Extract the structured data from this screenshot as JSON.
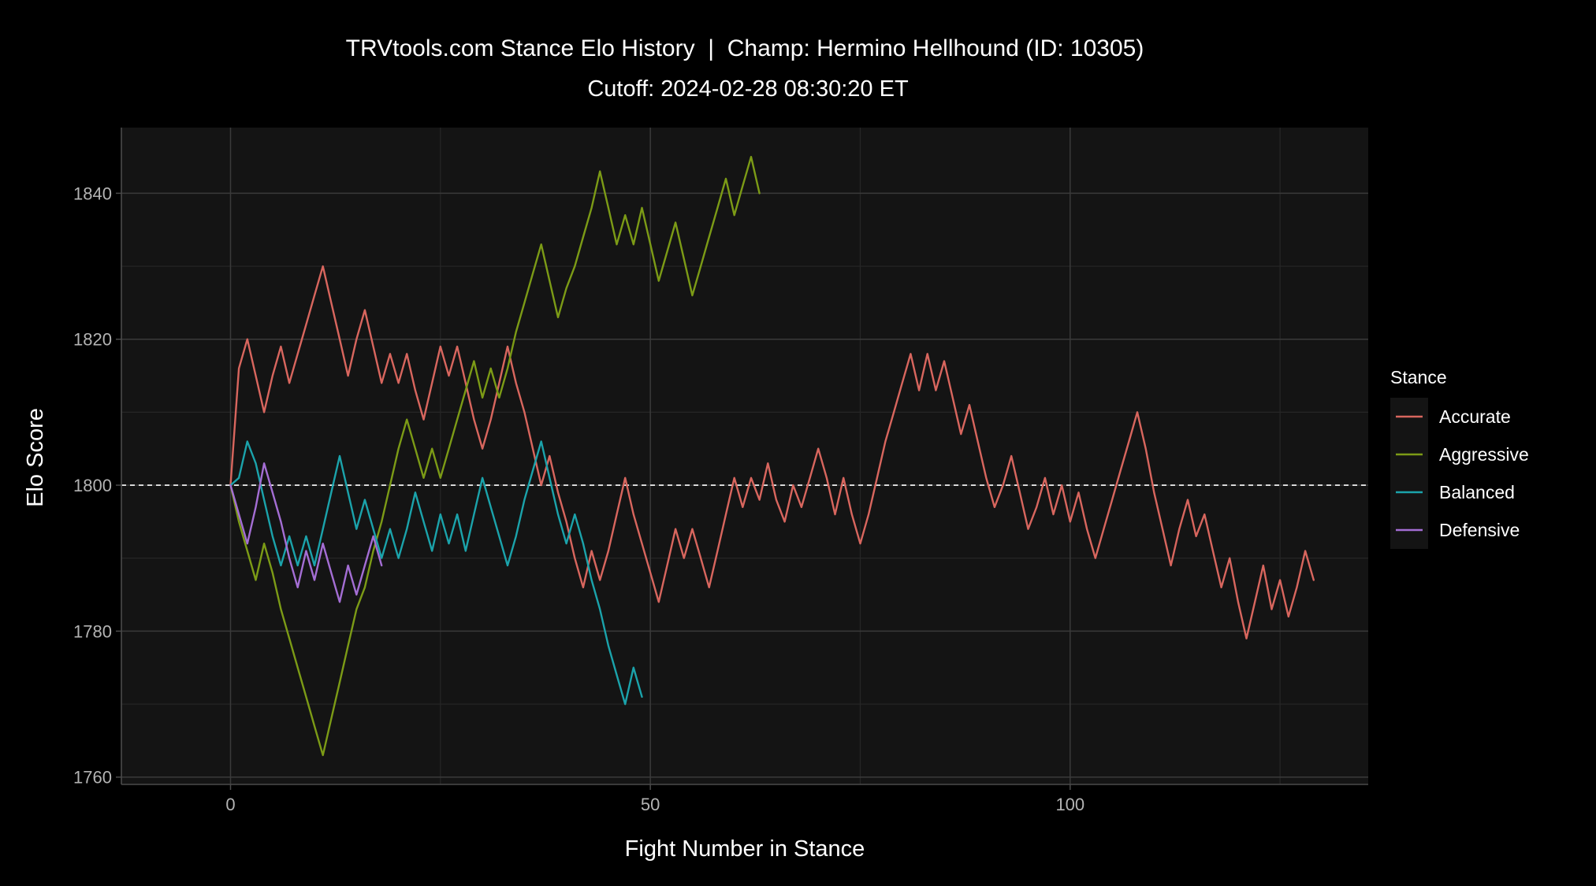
{
  "chart_data": {
    "type": "line",
    "title": "TRVtools.com Stance Elo History  |  Champ: Hermino Hellhound (ID: 10305)",
    "subtitle": "Cutoff: 2024-02-28 08:30:20 ET",
    "xlabel": "Fight Number in Stance",
    "ylabel": "Elo Score",
    "xlim": [
      -13,
      135.5
    ],
    "ylim": [
      1759,
      1849
    ],
    "x_ticks": [
      0,
      50,
      100
    ],
    "y_ticks": [
      1760,
      1780,
      1800,
      1820,
      1840
    ],
    "reference_line": 1800,
    "grid": true,
    "legend_title": "Stance",
    "legend_position": "right",
    "colors": {
      "background": "#000000",
      "panel": "#141414",
      "grid_major": "#3a3a3a",
      "grid_minor": "#262626",
      "reference": "#ffffff"
    },
    "series": [
      {
        "name": "Accurate",
        "color": "#d8665e",
        "values": [
          1800,
          1816,
          1820,
          1815,
          1810,
          1815,
          1819,
          1814,
          1818,
          1822,
          1826,
          1830,
          1825,
          1820,
          1815,
          1820,
          1824,
          1819,
          1814,
          1818,
          1814,
          1818,
          1813,
          1809,
          1814,
          1819,
          1815,
          1819,
          1814,
          1809,
          1805,
          1809,
          1814,
          1819,
          1814,
          1810,
          1805,
          1800,
          1804,
          1799,
          1795,
          1790,
          1786,
          1791,
          1787,
          1791,
          1796,
          1801,
          1796,
          1792,
          1788,
          1784,
          1789,
          1794,
          1790,
          1794,
          1790,
          1786,
          1791,
          1796,
          1801,
          1797,
          1801,
          1798,
          1803,
          1798,
          1795,
          1800,
          1797,
          1801,
          1805,
          1801,
          1796,
          1801,
          1796,
          1792,
          1796,
          1801,
          1806,
          1810,
          1814,
          1818,
          1813,
          1818,
          1813,
          1817,
          1812,
          1807,
          1811,
          1806,
          1801,
          1797,
          1800,
          1804,
          1799,
          1794,
          1797,
          1801,
          1796,
          1800,
          1795,
          1799,
          1794,
          1790,
          1794,
          1798,
          1802,
          1806,
          1810,
          1805,
          1799,
          1794,
          1789,
          1794,
          1798,
          1793,
          1796,
          1791,
          1786,
          1790,
          1784,
          1779,
          1784,
          1789,
          1783,
          1787,
          1782,
          1786,
          1791,
          1787
        ]
      },
      {
        "name": "Aggressive",
        "color": "#7c9b16",
        "values": [
          1800,
          1795,
          1791,
          1787,
          1792,
          1788,
          1783,
          1779,
          1775,
          1771,
          1767,
          1763,
          1768,
          1773,
          1778,
          1783,
          1786,
          1791,
          1795,
          1800,
          1805,
          1809,
          1805,
          1801,
          1805,
          1801,
          1805,
          1809,
          1813,
          1817,
          1812,
          1816,
          1812,
          1816,
          1821,
          1825,
          1829,
          1833,
          1828,
          1823,
          1827,
          1830,
          1834,
          1838,
          1843,
          1838,
          1833,
          1837,
          1833,
          1838,
          1833,
          1828,
          1832,
          1836,
          1831,
          1826,
          1830,
          1834,
          1838,
          1842,
          1837,
          1841,
          1845,
          1840
        ]
      },
      {
        "name": "Balanced",
        "color": "#1ba3ab",
        "values": [
          1800,
          1801,
          1806,
          1803,
          1798,
          1793,
          1789,
          1793,
          1789,
          1793,
          1789,
          1794,
          1799,
          1804,
          1799,
          1794,
          1798,
          1794,
          1790,
          1794,
          1790,
          1794,
          1799,
          1795,
          1791,
          1796,
          1792,
          1796,
          1791,
          1796,
          1801,
          1797,
          1793,
          1789,
          1793,
          1798,
          1802,
          1806,
          1801,
          1796,
          1792,
          1796,
          1792,
          1787,
          1783,
          1778,
          1774,
          1770,
          1775,
          1771
        ]
      },
      {
        "name": "Defensive",
        "color": "#a46ed4",
        "values": [
          1800,
          1796,
          1792,
          1797,
          1803,
          1799,
          1795,
          1790,
          1786,
          1791,
          1787,
          1792,
          1788,
          1784,
          1789,
          1785,
          1789,
          1793,
          1789
        ]
      }
    ]
  }
}
